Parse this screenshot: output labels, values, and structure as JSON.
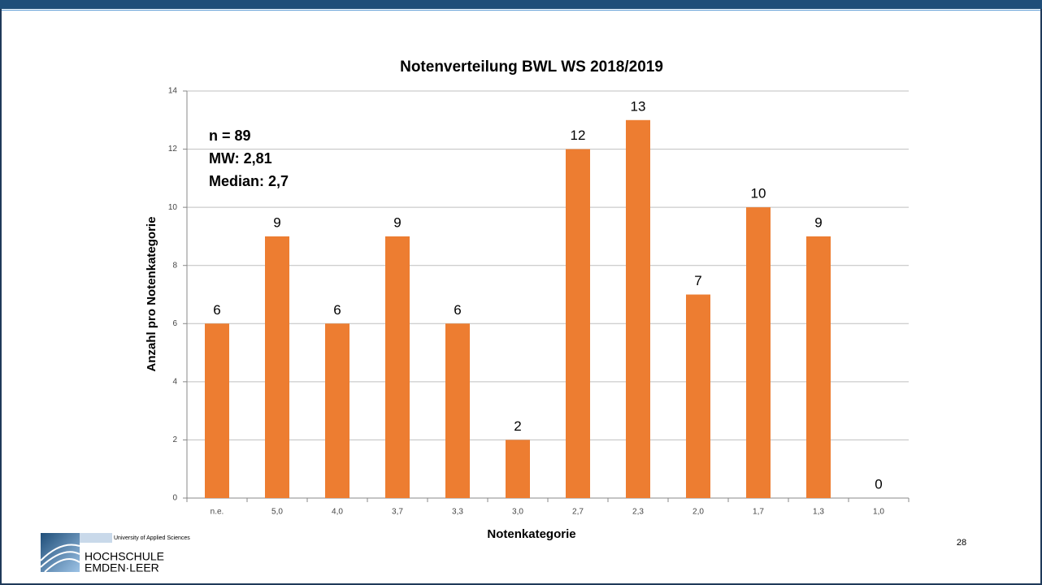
{
  "chart_data": {
    "type": "bar",
    "title": "Notenverteilung BWL WS 2018/2019",
    "categories": [
      "n.e.",
      "5,0",
      "4,0",
      "3,7",
      "3,3",
      "3,0",
      "2,7",
      "2,3",
      "2,0",
      "1,7",
      "1,3",
      "1,0"
    ],
    "values": [
      6,
      9,
      6,
      9,
      6,
      2,
      12,
      13,
      7,
      10,
      9,
      0
    ],
    "color": "#ed7d31",
    "ylim": [
      0,
      14
    ],
    "yticks": [
      0,
      2,
      4,
      6,
      8,
      10,
      12,
      14
    ],
    "grid": true,
    "xlabel": "Notenkategorie",
    "ylabel": "Anzahl pro Notenkategorie",
    "annotations": [
      "n = 89",
      "MW: 2,81",
      "Median: 2,7"
    ]
  },
  "logo": {
    "tagline": "University of Applied Sciences",
    "line1": "HOCHSCHULE",
    "line2": "EMDEN·LEER"
  },
  "page_number": 28
}
